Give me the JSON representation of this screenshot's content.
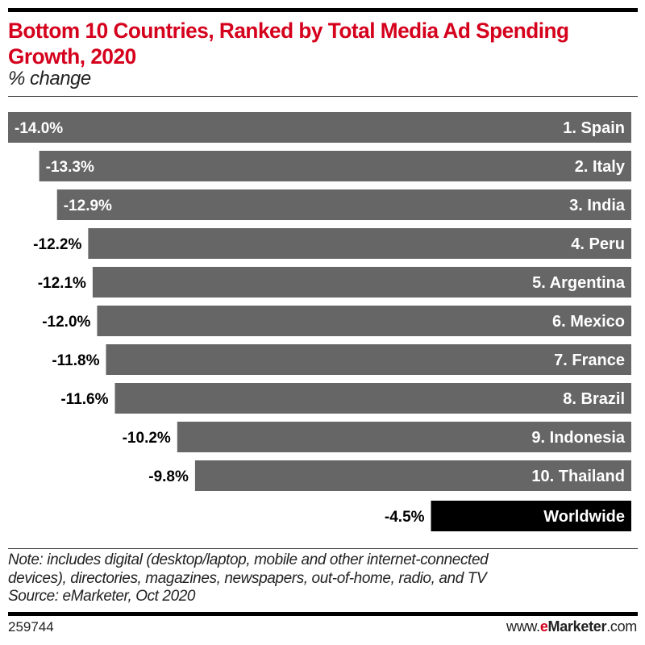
{
  "chart_data": {
    "type": "bar",
    "orientation": "horizontal",
    "title": "Bottom 10 Countries, Ranked by Total Media Ad Spending Growth, 2020",
    "subtitle": "% change",
    "categories": [
      "1. Spain",
      "2. Italy",
      "3. India",
      "4. Peru",
      "5. Argentina",
      "6. Mexico",
      "7. France",
      "8. Brazil",
      "9. Indonesia",
      "10. Thailand",
      "Worldwide"
    ],
    "values": [
      -14.0,
      -13.3,
      -12.9,
      -12.2,
      -12.1,
      -12.0,
      -11.8,
      -11.6,
      -10.2,
      -9.8,
      -4.5
    ],
    "value_labels": [
      "-14.0%",
      "-13.3%",
      "-12.9%",
      "-12.2%",
      "-12.1%",
      "-12.0%",
      "-11.8%",
      "-11.6%",
      "-10.2%",
      "-9.8%",
      "-4.5%"
    ],
    "xlim": [
      -14.0,
      0
    ],
    "grid": false,
    "colors": {
      "country": "#666666",
      "worldwide": "#000000",
      "title": "#d5001c"
    }
  },
  "footer": {
    "note_line1": "Note: includes digital (desktop/laptop, mobile and other internet-connected",
    "note_line2": "devices), directories, magazines, newspapers, out-of-home, radio, and TV",
    "source": "Source: eMarketer, Oct 2020",
    "chart_id": "259744",
    "brand_prefix": "www.",
    "brand_e": "e",
    "brand_name": "Marketer",
    "brand_suffix": ".com"
  }
}
